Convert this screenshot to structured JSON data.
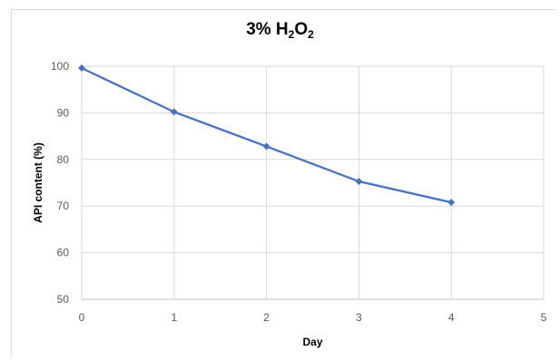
{
  "chart_data": {
    "type": "line",
    "title_main": "3% H",
    "title_sub1": "2",
    "title_mid": "O",
    "title_sub2": "2",
    "xlabel": "Day",
    "ylabel": "API content (%)",
    "xlim": [
      0,
      5
    ],
    "ylim": [
      50,
      100
    ],
    "xticks": [
      0,
      1,
      2,
      3,
      4,
      5
    ],
    "yticks": [
      50,
      60,
      70,
      80,
      90,
      100
    ],
    "grid": true,
    "legend": "none",
    "series": [
      {
        "x": [
          0,
          1,
          2,
          3,
          4
        ],
        "y": [
          99.6,
          90.2,
          82.8,
          75.3,
          70.8
        ],
        "color": "#4472c4",
        "marker": "diamond"
      }
    ]
  }
}
